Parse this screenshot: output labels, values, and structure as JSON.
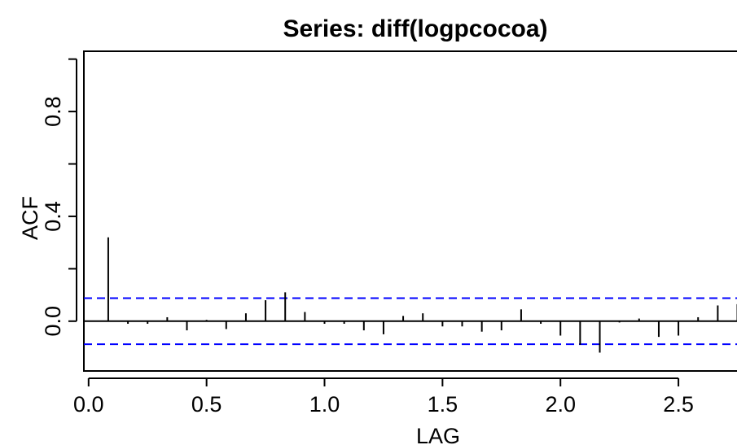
{
  "chart_data": {
    "type": "bar",
    "title": "Series:  diff(logpcocoa)",
    "xlabel": "LAG",
    "ylabel": "ACF",
    "xlim": [
      -0.02,
      2.8
    ],
    "ylim": [
      -0.19,
      1.03
    ],
    "x_ticks": [
      0.0,
      0.5,
      1.0,
      1.5,
      2.0,
      2.5
    ],
    "x_tick_labels": [
      "0.0",
      "0.5",
      "1.0",
      "1.5",
      "2.0",
      "2.5"
    ],
    "y_ticks": [
      0.0,
      0.4,
      0.8
    ],
    "y_tick_labels": [
      "0.0",
      "0.4",
      "0.8"
    ],
    "y_minor_ticks": [
      0.2,
      0.6,
      1.0
    ],
    "confidence_band": 0.088,
    "grid": false,
    "colors": {
      "bars": "#000000",
      "confidence": "#0000ff",
      "axes": "#000000"
    },
    "lags": [
      0.0833,
      0.1667,
      0.25,
      0.3333,
      0.4167,
      0.5,
      0.5833,
      0.6667,
      0.75,
      0.8333,
      0.9167,
      1.0,
      1.0833,
      1.1667,
      1.25,
      1.3333,
      1.4167,
      1.5,
      1.5833,
      1.6667,
      1.75,
      1.8333,
      1.9167,
      2.0,
      2.0833,
      2.1667,
      2.25,
      2.3333,
      2.4167,
      2.5,
      2.5833,
      2.6667,
      2.75
    ],
    "acf": [
      0.32,
      -0.01,
      -0.01,
      0.015,
      -0.035,
      0.005,
      -0.03,
      0.03,
      0.08,
      0.11,
      0.035,
      -0.01,
      -0.01,
      -0.035,
      -0.05,
      0.02,
      0.03,
      -0.02,
      -0.02,
      -0.04,
      -0.035,
      0.045,
      -0.01,
      -0.055,
      -0.09,
      -0.12,
      -0.005,
      0.01,
      -0.06,
      -0.055,
      0.015,
      0.06,
      0.065
    ]
  }
}
